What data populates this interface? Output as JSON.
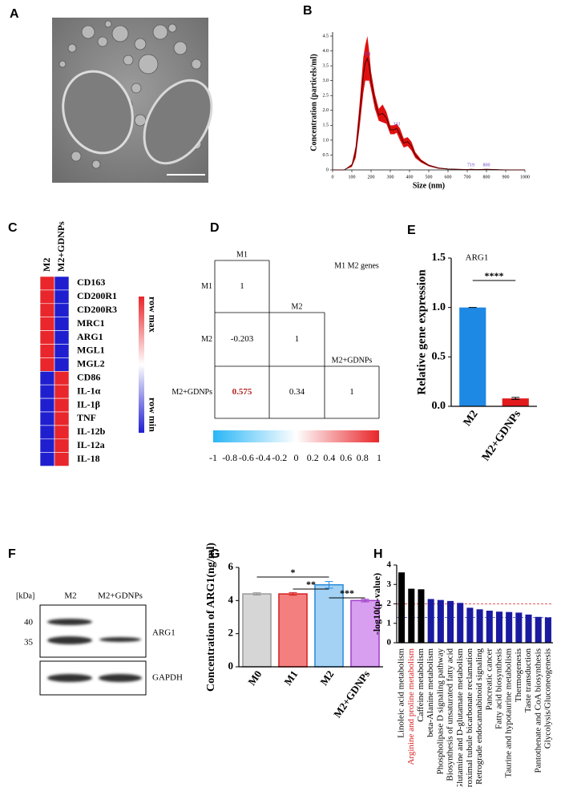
{
  "panel_labels": [
    "A",
    "B",
    "C",
    "D",
    "E",
    "F",
    "G",
    "H"
  ],
  "western_blot": {
    "unit": "[kDa]",
    "markers": [
      40,
      35
    ],
    "lanes": [
      "M2",
      "M2+GDNPs"
    ],
    "bands": [
      "ARG1",
      "GAPDH"
    ]
  },
  "chart_data": [
    {
      "type": "line",
      "xlabel": "Size (nm)",
      "ylabel": "Concentration (particels/ml)",
      "x": [
        0,
        60,
        100,
        120,
        140,
        160,
        170,
        181,
        190,
        200,
        220,
        240,
        260,
        280,
        300,
        320,
        333,
        350,
        370,
        390,
        410,
        430,
        460,
        500,
        550,
        600,
        650,
        700,
        719,
        750,
        800,
        850,
        900,
        1000
      ],
      "values": [
        0,
        0,
        0.15,
        0.6,
        1.8,
        3.2,
        3.6,
        3.75,
        3.5,
        3.0,
        2.3,
        1.85,
        1.9,
        1.75,
        1.35,
        1.35,
        1.4,
        1.2,
        0.9,
        0.95,
        0.8,
        0.5,
        0.3,
        0.15,
        0.06,
        0.03,
        0.02,
        0.01,
        0.02,
        0.01,
        0.02,
        0.01,
        0,
        0
      ],
      "errors": [
        0,
        0,
        0.05,
        0.2,
        0.4,
        0.6,
        0.6,
        0.75,
        0.5,
        0.3,
        0.25,
        0.2,
        0.3,
        0.2,
        0.15,
        0.15,
        0.15,
        0.2,
        0.15,
        0.15,
        0.15,
        0.1,
        0.05,
        0.03,
        0.02,
        0.01,
        0.01,
        0.01,
        0.01,
        0.01,
        0.01,
        0.01,
        0,
        0
      ],
      "color": "#4a0000",
      "band_color": "#e01010",
      "peak_labels": {
        "x": [
          181,
          333,
          719,
          800
        ],
        "y": [
          3.75,
          1.4,
          0.02,
          0.02
        ],
        "color": "#6a3fd0"
      },
      "xlim": [
        0,
        1000
      ],
      "xticks": [
        0,
        100,
        200,
        300,
        400,
        500,
        600,
        700,
        800,
        900,
        1000
      ],
      "ylim": [
        0,
        4.5
      ],
      "yticks": [
        0,
        0.5,
        {
          "value": 1,
          "label": "1.0"
        },
        1.5,
        {
          "value": 2,
          "label": "2.0"
        },
        2.5,
        {
          "value": 3,
          "label": "3.0"
        },
        3.5,
        {
          "value": 4,
          "label": "4.0"
        },
        4.5
      ]
    },
    {
      "type": "heatmap",
      "columns": [
        "M2",
        "M2+GDNPs"
      ],
      "rows": [
        "CD163",
        "CD200R1",
        "CD200R3",
        "MRC1",
        "ARG1",
        "MGL1",
        "MGL2",
        "CD86",
        "IL-1α",
        "IL-1β",
        "TNF",
        "IL-12b",
        "IL-12a",
        "IL-18"
      ],
      "values": [
        [
          1,
          -1
        ],
        [
          1,
          -1
        ],
        [
          1,
          -1
        ],
        [
          1,
          -1
        ],
        [
          1,
          -1
        ],
        [
          1,
          -1
        ],
        [
          1,
          -1
        ],
        [
          -1,
          1
        ],
        [
          -1,
          1
        ],
        [
          -1,
          1
        ],
        [
          -1,
          1
        ],
        [
          -1,
          1
        ],
        [
          -1,
          1
        ],
        [
          -1,
          1
        ]
      ],
      "color_high": "#e8262b",
      "color_low": "#1f1fd0",
      "legend_max": "row max",
      "legend_min": "row min"
    },
    {
      "type": "corr",
      "title": "M1 M2 genes",
      "labels": [
        "M1",
        "M2",
        "M2+GDNPs"
      ],
      "matrix": [
        [
          1
        ],
        [
          -0.203,
          1
        ],
        [
          0.575,
          0.34,
          1
        ]
      ],
      "highlight": {
        "row": 2,
        "col": 0,
        "color": "#b22222"
      },
      "color_low": "#29b6f6",
      "color_high": "#e8262b",
      "colorbar_lim": [
        -1,
        1
      ],
      "colorbar_ticks": [
        -1,
        -0.8,
        -0.6,
        -0.4,
        -0.2,
        0,
        0.2,
        0.4,
        0.6,
        0.8,
        1
      ]
    },
    {
      "type": "bar",
      "title": "ARG1",
      "ylabel": "Relative gene expression",
      "categories": [
        "M2",
        "M2+GDNPs"
      ],
      "values": [
        1.0,
        0.08
      ],
      "errors": [
        0,
        0.01
      ],
      "colors": [
        "#1e88e5",
        "#e31a1c"
      ],
      "ylim": [
        0,
        1.5
      ],
      "yticks": [
        {
          "value": 0,
          "label": "0.0"
        },
        0.5,
        {
          "value": 1,
          "label": "1.0"
        },
        1.5
      ],
      "significance": [
        {
          "from": 0,
          "to": 1,
          "label": "****"
        }
      ]
    },
    {
      "type": "bar",
      "ylabel": "Concentration of ARG1(ng/ml)",
      "categories": [
        "M0",
        "M1",
        "M2",
        "M2+GDNPs"
      ],
      "values": [
        4.4,
        4.4,
        4.95,
        4.0
      ],
      "errors": [
        0.07,
        0.08,
        0.2,
        0.08
      ],
      "colors": [
        "#d6d6d6",
        "#f47f7f",
        "#a3d2f5",
        "#d89ef0"
      ],
      "edge_colors": [
        "#999999",
        "#d62020",
        "#2a8ad8",
        "#a040c8"
      ],
      "ylim": [
        0,
        6
      ],
      "yticks": [
        0,
        2,
        4,
        6
      ],
      "significance": [
        {
          "from": 0,
          "to": 2,
          "label": "*"
        },
        {
          "from": 1,
          "to": 2,
          "label": "**"
        },
        {
          "from": 2,
          "to": 3,
          "label": "***"
        }
      ]
    },
    {
      "type": "bar",
      "ylabel": "-log10(p-value)",
      "categories": [
        "Linoleic acid metabolism",
        "Arginine and proline metabolism",
        "Caffeine metabolism",
        "beta-Alanine metabolism",
        "Phospholipase D signaling pathway",
        "Biosynthesis of unsaturated fatty acid",
        "D-Glutamine and D-glutamate metabolism",
        "Proximal tubule bicarbonate reclamation",
        "Retrograde endocannabinoid signaling",
        "Pancreatic cancer",
        "Fatty acid biosynthesis",
        "Taurine and hypotaurine metabolism",
        "Thermogenesis",
        "Taste transduction",
        "Pantothenate and CoA biosynthesis",
        "Glycolysis/Gluconeogenesis"
      ],
      "values": [
        3.62,
        2.78,
        2.75,
        2.25,
        2.2,
        2.15,
        2.05,
        1.8,
        1.72,
        1.65,
        1.6,
        1.58,
        1.55,
        1.45,
        1.33,
        1.3
      ],
      "colors": [
        "#000000",
        "#000000",
        "#000000",
        "#1a1aa0",
        "#1a1aa0",
        "#1a1aa0",
        "#1a1aa0",
        "#1a1aa0",
        "#1a1aa0",
        "#1a1aa0",
        "#1a1aa0",
        "#1a1aa0",
        "#1a1aa0",
        "#1a1aa0",
        "#1a1aa0",
        "#1a1aa0"
      ],
      "label_colors": [
        null,
        "#d62020"
      ],
      "hlines": [
        {
          "value": 2,
          "color": "#d62020"
        },
        {
          "value": 1.3,
          "color": "#3344cc"
        }
      ],
      "ylim": [
        0,
        4
      ],
      "yticks": [
        0,
        1,
        2,
        3,
        4
      ]
    }
  ]
}
